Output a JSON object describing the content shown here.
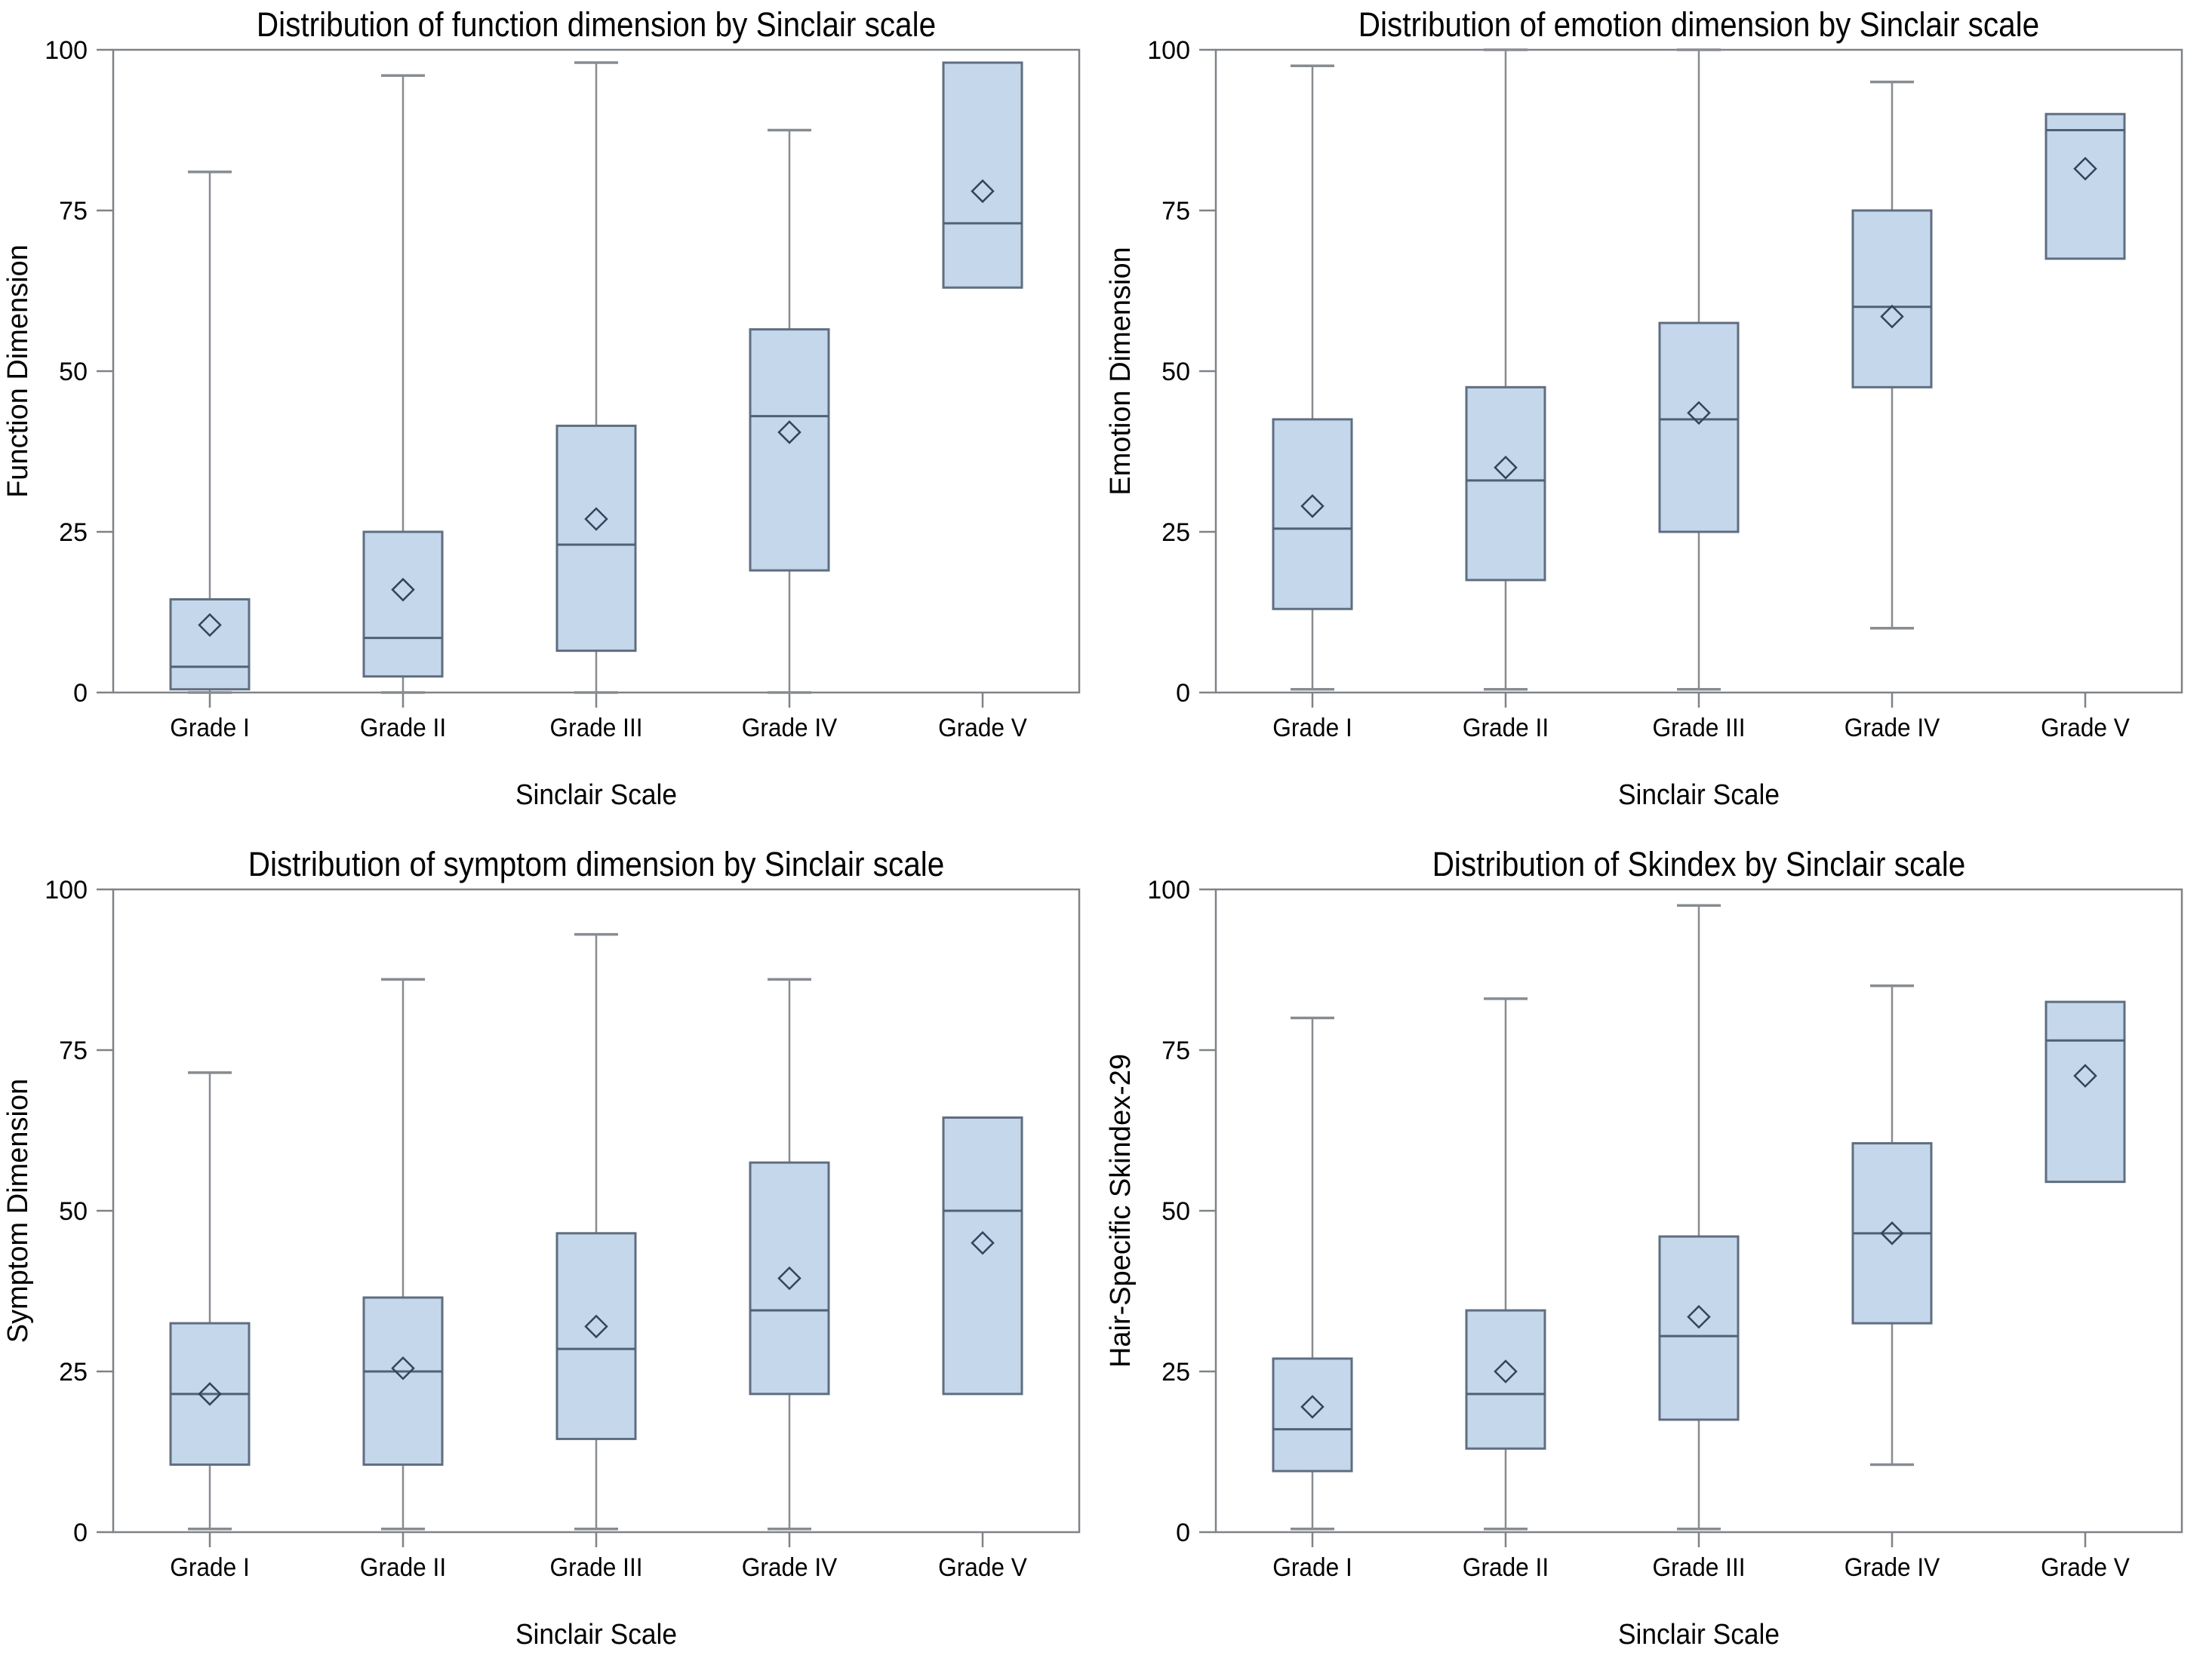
{
  "figure": {
    "background": "#ffffff",
    "layout": "2x2-grid-of-boxplots"
  },
  "styles": {
    "box_fill": "#c5d7ea",
    "box_stroke": "#5f6e80",
    "median_color": "#4e6175",
    "whisker_color": "#878c91",
    "frame_color": "#7f8287",
    "mean_marker_color": "#32455e",
    "text_color": "#000000"
  },
  "chart_data": [
    {
      "type": "boxplot",
      "title": "Distribution of function dimension by Sinclair scale",
      "xlabel": "Sinclair Scale",
      "ylabel": "Function Dimension",
      "ylim": [
        0,
        100
      ],
      "yticks": [
        0,
        25,
        50,
        75,
        100
      ],
      "grid": false,
      "legend": "none",
      "mean_marker": "diamond-outline",
      "categories": [
        "Grade I",
        "Grade II",
        "Grade III",
        "Grade IV",
        "Grade V"
      ],
      "series": [
        {
          "category": "Grade I",
          "whisker_low": 0,
          "q1": 0.5,
          "median": 4,
          "q3": 14.5,
          "whisker_high": 81,
          "mean": 10.5
        },
        {
          "category": "Grade II",
          "whisker_low": 0,
          "q1": 2.5,
          "median": 8.5,
          "q3": 25,
          "whisker_high": 96,
          "mean": 16
        },
        {
          "category": "Grade III",
          "whisker_low": 0,
          "q1": 6.5,
          "median": 23,
          "q3": 41.5,
          "whisker_high": 98,
          "mean": 27
        },
        {
          "category": "Grade IV",
          "whisker_low": 0,
          "q1": 19,
          "median": 43,
          "q3": 56.5,
          "whisker_high": 87.5,
          "mean": 40.5
        },
        {
          "category": "Grade V",
          "whisker_low": null,
          "q1": 63,
          "median": 73,
          "q3": 98,
          "whisker_high": null,
          "mean": 78
        }
      ]
    },
    {
      "type": "boxplot",
      "title": "Distribution of emotion dimension by Sinclair scale",
      "xlabel": "Sinclair Scale",
      "ylabel": "Emotion Dimension",
      "ylim": [
        0,
        100
      ],
      "yticks": [
        0,
        25,
        50,
        75,
        100
      ],
      "grid": false,
      "legend": "none",
      "mean_marker": "diamond-outline",
      "categories": [
        "Grade I",
        "Grade II",
        "Grade III",
        "Grade IV",
        "Grade V"
      ],
      "series": [
        {
          "category": "Grade I",
          "whisker_low": 0.5,
          "q1": 13,
          "median": 25.5,
          "q3": 42.5,
          "whisker_high": 97.5,
          "mean": 29
        },
        {
          "category": "Grade II",
          "whisker_low": 0.5,
          "q1": 17.5,
          "median": 33,
          "q3": 47.5,
          "whisker_high": 100,
          "mean": 35
        },
        {
          "category": "Grade III",
          "whisker_low": 0.5,
          "q1": 25,
          "median": 42.5,
          "q3": 57.5,
          "whisker_high": 100,
          "mean": 43.5
        },
        {
          "category": "Grade IV",
          "whisker_low": 10,
          "q1": 47.5,
          "median": 60,
          "q3": 75,
          "whisker_high": 95,
          "mean": 58.5
        },
        {
          "category": "Grade V",
          "whisker_low": null,
          "q1": 67.5,
          "median": 87.5,
          "q3": 90,
          "whisker_high": null,
          "mean": 81.5
        }
      ]
    },
    {
      "type": "boxplot",
      "title": "Distribution of symptom dimension by Sinclair scale",
      "xlabel": "Sinclair Scale",
      "ylabel": "Symptom Dimension",
      "ylim": [
        0,
        100
      ],
      "yticks": [
        0,
        25,
        50,
        75,
        100
      ],
      "grid": false,
      "legend": "none",
      "mean_marker": "diamond-outline",
      "categories": [
        "Grade I",
        "Grade II",
        "Grade III",
        "Grade IV",
        "Grade V"
      ],
      "series": [
        {
          "category": "Grade I",
          "whisker_low": 0.5,
          "q1": 10.5,
          "median": 21.5,
          "q3": 32.5,
          "whisker_high": 71.5,
          "mean": 21.5
        },
        {
          "category": "Grade II",
          "whisker_low": 0.5,
          "q1": 10.5,
          "median": 25,
          "q3": 36.5,
          "whisker_high": 86,
          "mean": 25.5
        },
        {
          "category": "Grade III",
          "whisker_low": 0.5,
          "q1": 14.5,
          "median": 28.5,
          "q3": 46.5,
          "whisker_high": 93,
          "mean": 32
        },
        {
          "category": "Grade IV",
          "whisker_low": 0.5,
          "q1": 21.5,
          "median": 34.5,
          "q3": 57.5,
          "whisker_high": 86,
          "mean": 39.5
        },
        {
          "category": "Grade V",
          "whisker_low": null,
          "q1": 21.5,
          "median": 50,
          "q3": 64.5,
          "whisker_high": null,
          "mean": 45
        }
      ]
    },
    {
      "type": "boxplot",
      "title": "Distribution of Skindex by Sinclair scale",
      "xlabel": "Sinclair Scale",
      "ylabel": "Hair-Specific Skindex-29",
      "ylim": [
        0,
        100
      ],
      "yticks": [
        0,
        25,
        50,
        75,
        100
      ],
      "grid": false,
      "legend": "none",
      "mean_marker": "diamond-outline",
      "categories": [
        "Grade I",
        "Grade II",
        "Grade III",
        "Grade IV",
        "Grade V"
      ],
      "series": [
        {
          "category": "Grade I",
          "whisker_low": 0.5,
          "q1": 9.5,
          "median": 16,
          "q3": 27,
          "whisker_high": 80,
          "mean": 19.5
        },
        {
          "category": "Grade II",
          "whisker_low": 0.5,
          "q1": 13,
          "median": 21.5,
          "q3": 34.5,
          "whisker_high": 83,
          "mean": 25
        },
        {
          "category": "Grade III",
          "whisker_low": 0.5,
          "q1": 17.5,
          "median": 30.5,
          "q3": 46,
          "whisker_high": 97.5,
          "mean": 33.5
        },
        {
          "category": "Grade IV",
          "whisker_low": 10.5,
          "q1": 32.5,
          "median": 46.5,
          "q3": 60.5,
          "whisker_high": 85,
          "mean": 46.5
        },
        {
          "category": "Grade V",
          "whisker_low": null,
          "q1": 54.5,
          "median": 76.5,
          "q3": 82.5,
          "whisker_high": null,
          "mean": 71
        }
      ]
    }
  ]
}
